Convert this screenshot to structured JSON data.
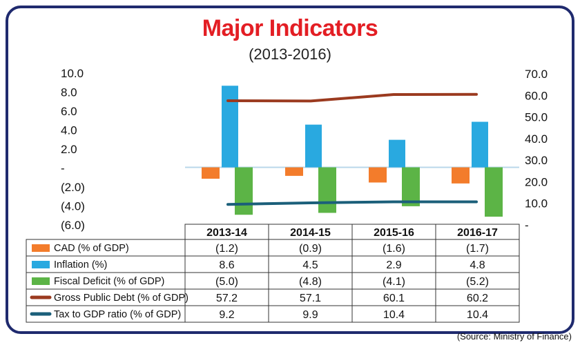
{
  "colors": {
    "frame": "#1f2a6e",
    "title": "#e31e24",
    "cad": "#f37c2b",
    "inflation": "#29a9e0",
    "fiscal_deficit": "#5cb446",
    "gross_public_debt": "#9b3a1f",
    "tax_to_gdp": "#1b5f7a"
  },
  "source": "(Source: Ministry of Finance)",
  "chart_data": {
    "type": "bar",
    "title": "Major Indicators",
    "subtitle": "(2013-2016)",
    "categories": [
      "2013-14",
      "2014-15",
      "2015-16",
      "2016-17"
    ],
    "left_axis": {
      "ylim": [
        -6,
        10
      ],
      "ticks": [
        "10.0",
        "8.0",
        "6.0",
        "4.0",
        "2.0",
        "-",
        "(2.0)",
        "(4.0)",
        "(6.0)"
      ]
    },
    "right_axis": {
      "ylim": [
        0,
        70
      ],
      "ticks": [
        "70.0",
        "60.0",
        "50.0",
        "40.0",
        "30.0",
        "20.0",
        "10.0",
        "-"
      ]
    },
    "series": [
      {
        "name": "CAD (% of GDP)",
        "kind": "bar",
        "axis": "left",
        "color": "#f37c2b",
        "values": [
          -1.2,
          -0.9,
          -1.6,
          -1.7
        ],
        "labels": [
          "(1.2)",
          "(0.9)",
          "(1.6)",
          "(1.7)"
        ]
      },
      {
        "name": "Inflation (%)",
        "kind": "bar",
        "axis": "left",
        "color": "#29a9e0",
        "values": [
          8.6,
          4.5,
          2.9,
          4.8
        ],
        "labels": [
          "8.6",
          "4.5",
          "2.9",
          "4.8"
        ]
      },
      {
        "name": "Fiscal Deficit (% of GDP)",
        "kind": "bar",
        "axis": "left",
        "color": "#5cb446",
        "values": [
          -5.0,
          -4.8,
          -4.1,
          -5.2
        ],
        "labels": [
          "(5.0)",
          "(4.8)",
          "(4.1)",
          "(5.2)"
        ]
      },
      {
        "name": "Gross Public Debt (% of GDP)",
        "kind": "line",
        "axis": "right",
        "color": "#9b3a1f",
        "values": [
          57.2,
          57.1,
          60.1,
          60.2
        ],
        "labels": [
          "57.2",
          "57.1",
          "60.1",
          "60.2"
        ]
      },
      {
        "name": "Tax to GDP ratio (% of GDP)",
        "kind": "line",
        "axis": "right",
        "color": "#1b5f7a",
        "values": [
          9.2,
          9.9,
          10.4,
          10.4
        ],
        "labels": [
          "9.2",
          "9.9",
          "10.4",
          "10.4"
        ]
      }
    ]
  }
}
